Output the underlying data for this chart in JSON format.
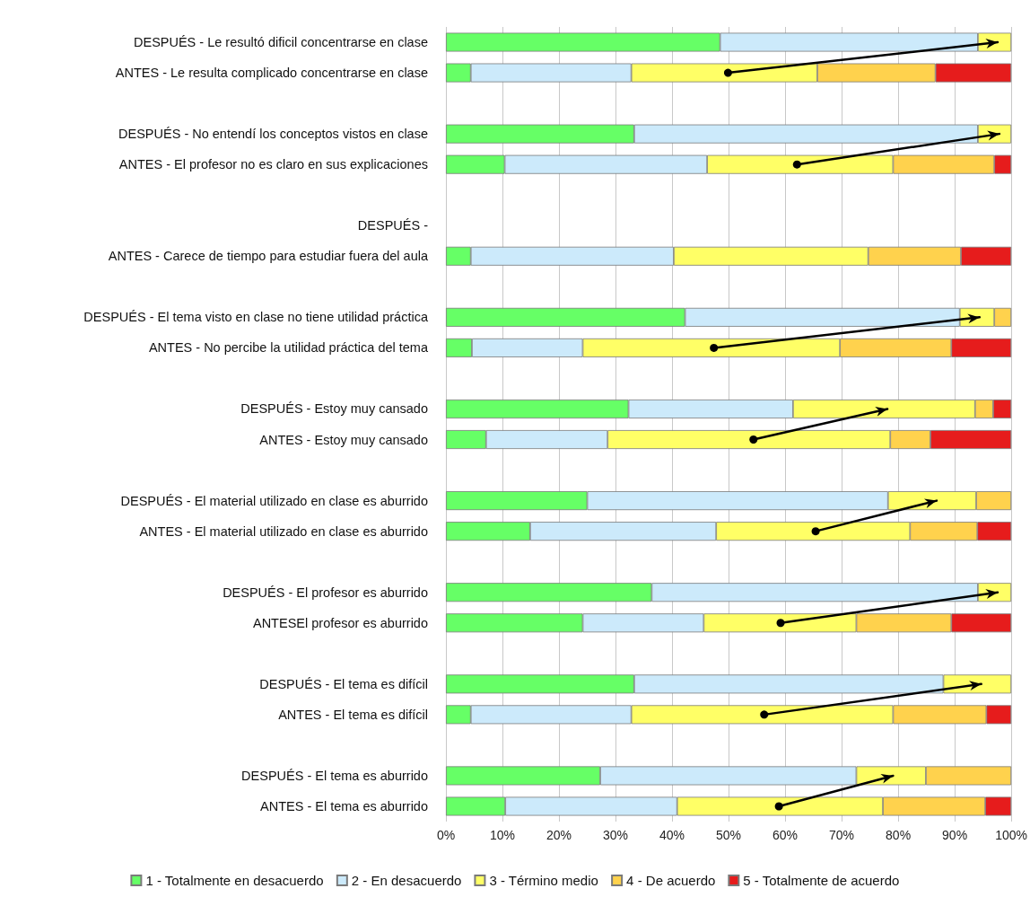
{
  "chart_data": {
    "type": "bar",
    "orientation": "horizontal",
    "stacked": true,
    "grid": "x",
    "legend": "bottom",
    "categories": [
      "DESPUÉS - Le resultó dificil concentrarse en clase",
      "ANTES - Le resulta complicado concentrarse en clase",
      null,
      "DESPUÉS - No entendí los conceptos vistos en clase",
      "ANTES - El profesor no es claro en sus explicaciones",
      null,
      "DESPUÉS -",
      "ANTES - Carece de tiempo para estudiar fuera del aula",
      null,
      "DESPUÉS - El tema visto en clase no tiene utilidad práctica",
      "ANTES - No percibe la utilidad práctica del tema",
      null,
      "DESPUÉS - Estoy muy cansado",
      "ANTES - Estoy muy cansado",
      null,
      "DESPUÉS - El material utilizado en clase es aburrido",
      "ANTES - El material utilizado en clase es aburrido",
      null,
      "DESPUÉS - El profesor es aburrido",
      "ANTESEl profesor es aburrido",
      null,
      "DESPUÉS - El tema es difícil",
      "ANTES - El tema es difícil",
      null,
      "DESPUÉS - El tema es aburrido",
      "ANTES - El tema es aburrido"
    ],
    "xlim": [
      0,
      100
    ],
    "xticks": [
      {
        "value": 0,
        "label": "0%"
      },
      {
        "value": 10,
        "label": "10%"
      },
      {
        "value": 20,
        "label": "20%"
      },
      {
        "value": 30,
        "label": "30%"
      },
      {
        "value": 40,
        "label": "40%"
      },
      {
        "value": 50,
        "label": "50%"
      },
      {
        "value": 60,
        "label": "60%"
      },
      {
        "value": 70,
        "label": "70%"
      },
      {
        "value": 80,
        "label": "80%"
      },
      {
        "value": 90,
        "label": "90%"
      },
      {
        "value": 100,
        "label": "100%"
      }
    ],
    "series": [
      {
        "name": "1 - Totalmente en desacuerdo",
        "color": "#66ff66",
        "values": [
          48.5,
          4.4,
          null,
          33.3,
          10.4,
          null,
          null,
          4.4,
          null,
          42.3,
          4.6,
          null,
          32.3,
          7.1,
          null,
          25.0,
          14.9,
          null,
          36.4,
          24.2,
          null,
          33.3,
          4.4,
          null,
          27.3,
          10.5
        ]
      },
      {
        "name": "2 - En desacuerdo",
        "color": "#cceafb",
        "values": [
          45.6,
          28.4,
          null,
          60.8,
          35.8,
          null,
          null,
          35.9,
          null,
          48.6,
          19.6,
          null,
          29.1,
          21.5,
          null,
          53.2,
          32.9,
          null,
          57.7,
          21.4,
          null,
          54.7,
          28.4,
          null,
          45.3,
          30.4
        ]
      },
      {
        "name": "3 - Término medio",
        "color": "#ffff66",
        "values": [
          5.9,
          32.9,
          null,
          5.9,
          32.9,
          null,
          null,
          34.4,
          null,
          6.1,
          45.5,
          null,
          32.2,
          50.0,
          null,
          15.6,
          34.3,
          null,
          5.9,
          27.0,
          null,
          12.0,
          46.3,
          null,
          12.3,
          36.4
        ]
      },
      {
        "name": "4 - De acuerdo",
        "color": "#ffd24d",
        "values": [
          null,
          20.9,
          null,
          null,
          17.9,
          null,
          null,
          16.4,
          null,
          3.0,
          19.7,
          null,
          3.2,
          7.1,
          null,
          6.2,
          11.9,
          null,
          null,
          16.8,
          null,
          null,
          16.5,
          null,
          15.1,
          18.1
        ]
      },
      {
        "name": "5 - Totalmente de acuerdo",
        "color": "#e61c1c",
        "values": [
          null,
          13.4,
          null,
          null,
          3.0,
          null,
          null,
          8.9,
          null,
          null,
          10.6,
          null,
          3.2,
          14.3,
          null,
          null,
          6.0,
          null,
          null,
          10.6,
          null,
          null,
          4.4,
          null,
          null,
          4.6
        ]
      },
      {
        "type": "line",
        "color": "#000000",
        "marker": "circle",
        "values": [
          97.6,
          49.9,
          null,
          null,
          null,
          null,
          null,
          null,
          null,
          null,
          null,
          null,
          null,
          null,
          null,
          null,
          null,
          null,
          null,
          null,
          null,
          null,
          null,
          null,
          null,
          null
        ]
      },
      {
        "type": "line",
        "color": "#000000",
        "marker": "circle",
        "values": [
          null,
          null,
          null,
          97.9,
          62.1,
          null,
          null,
          null,
          null,
          null,
          null,
          null,
          null,
          null,
          null,
          null,
          null,
          null,
          null,
          null,
          null,
          null,
          null,
          null,
          null,
          null
        ]
      },
      {
        "type": "line",
        "color": "#000000",
        "marker": "circle",
        "values": [
          null,
          null,
          null,
          null,
          null,
          null,
          null,
          null,
          null,
          94.4,
          47.4,
          null,
          null,
          null,
          null,
          null,
          null,
          null,
          null,
          null,
          null,
          null,
          null,
          null,
          null,
          null
        ]
      },
      {
        "type": "line",
        "color": "#000000",
        "marker": "circle",
        "values": [
          null,
          null,
          null,
          null,
          null,
          null,
          null,
          null,
          null,
          null,
          null,
          null,
          78.1,
          54.4,
          null,
          null,
          null,
          null,
          null,
          null,
          null,
          null,
          null,
          null,
          null,
          null
        ]
      },
      {
        "type": "line",
        "color": "#000000",
        "marker": "circle",
        "values": [
          null,
          null,
          null,
          null,
          null,
          null,
          null,
          null,
          null,
          null,
          null,
          null,
          null,
          null,
          null,
          86.8,
          65.4,
          null,
          null,
          null,
          null,
          null,
          null,
          null,
          null,
          null
        ]
      },
      {
        "type": "line",
        "color": "#000000",
        "marker": "circle",
        "values": [
          null,
          null,
          null,
          null,
          null,
          null,
          null,
          null,
          null,
          null,
          null,
          null,
          null,
          null,
          null,
          null,
          null,
          null,
          97.6,
          59.2,
          null,
          null,
          null,
          null,
          null,
          null
        ]
      },
      {
        "type": "line",
        "color": "#000000",
        "marker": "circle",
        "values": [
          null,
          null,
          null,
          null,
          null,
          null,
          null,
          null,
          null,
          null,
          null,
          null,
          null,
          null,
          null,
          null,
          null,
          null,
          null,
          null,
          null,
          94.7,
          56.3,
          null,
          null,
          null
        ]
      },
      {
        "type": "line",
        "color": "#000000",
        "marker": "circle",
        "values": [
          null,
          null,
          null,
          null,
          null,
          null,
          null,
          null,
          null,
          null,
          null,
          null,
          null,
          null,
          null,
          null,
          null,
          null,
          null,
          null,
          null,
          null,
          null,
          null,
          79.1,
          58.9
        ]
      }
    ]
  }
}
